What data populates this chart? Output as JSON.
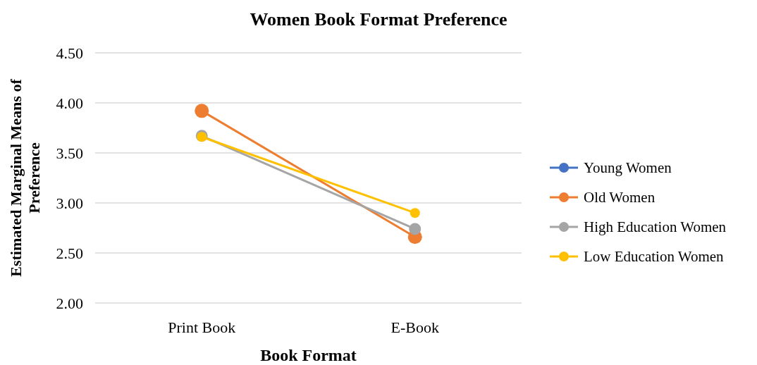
{
  "chart_data": {
    "type": "line",
    "title": "Women Book Format Preference",
    "xlabel": "Book Format",
    "ylabel": "Estimated Marginal Means of Preference",
    "categories": [
      "Print Book",
      "E-Book"
    ],
    "series": [
      {
        "name": "Young Women",
        "color": "#4472c4",
        "values": [
          null,
          null
        ]
      },
      {
        "name": "Old Women",
        "color": "#ed7d31",
        "values": [
          3.92,
          2.66
        ]
      },
      {
        "name": "High Education Women",
        "color": "#a5a5a5",
        "values": [
          3.67,
          2.74
        ]
      },
      {
        "name": "Low Education Women",
        "color": "#ffc000",
        "values": [
          3.66,
          2.9
        ]
      }
    ],
    "ylim": [
      2,
      4.5
    ],
    "yticks": [
      {
        "value": 2,
        "label": "2.00"
      },
      {
        "value": 2.5,
        "label": "2.50"
      },
      {
        "value": 3,
        "label": "3.00"
      },
      {
        "value": 3.5,
        "label": "3.50"
      },
      {
        "value": 4,
        "label": "4.00"
      },
      {
        "value": 4.5,
        "label": "4.50"
      }
    ],
    "grid": "y",
    "legend": "right",
    "marker": "circle"
  }
}
